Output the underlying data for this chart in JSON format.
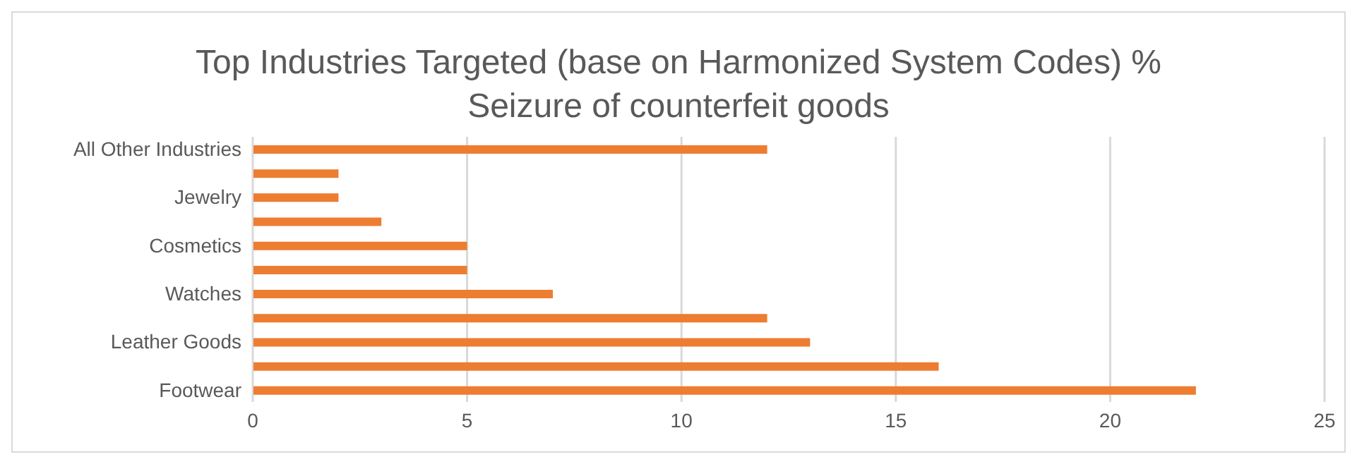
{
  "chart_data": {
    "type": "bar",
    "orientation": "horizontal",
    "title": "Top Industries Targeted (base on Harmonized System Codes) %\nSeizure of counterfeit goods",
    "categories": [
      "All Other Industries",
      null,
      "Jewelry",
      null,
      "Cosmetics",
      null,
      "Watches",
      null,
      "Leather Goods",
      null,
      "Footwear"
    ],
    "values": [
      12,
      2,
      2,
      3,
      5,
      5,
      7,
      12,
      13,
      16,
      22
    ],
    "color": "#ed7d31",
    "xlim": [
      0,
      25
    ],
    "xticks": [
      0,
      5,
      10,
      15,
      20,
      25
    ],
    "grid": "x",
    "legend": false
  }
}
